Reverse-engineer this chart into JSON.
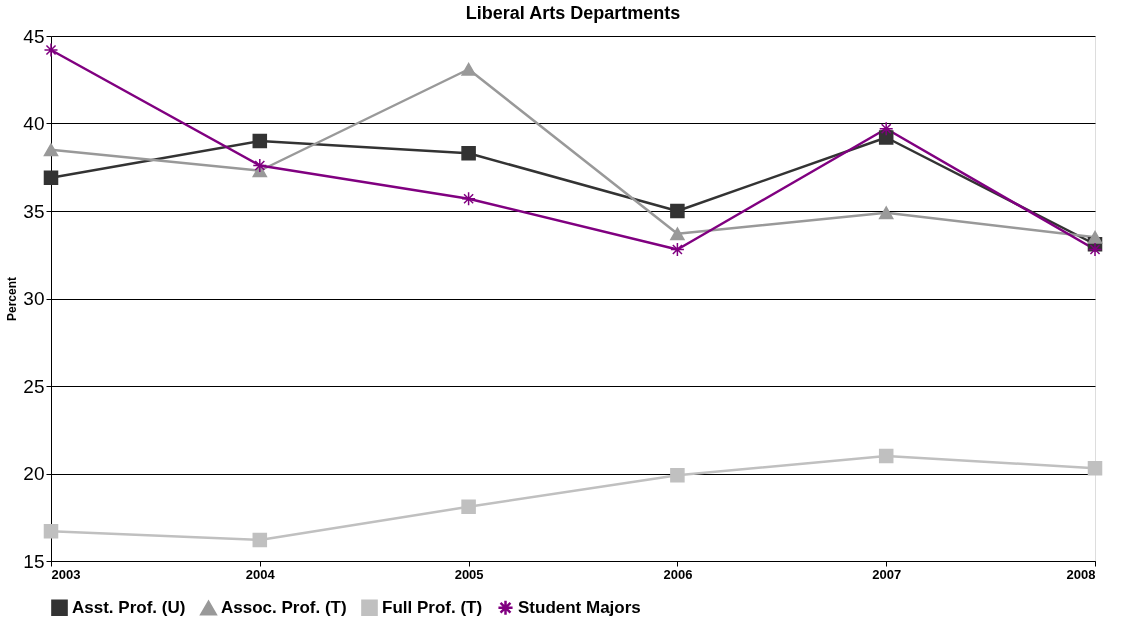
{
  "chart_data": {
    "type": "line",
    "title": "Liberal Arts Departments",
    "ylabel": "Percent",
    "categories": [
      "2003",
      "2004",
      "2005",
      "2006",
      "2007",
      "2008"
    ],
    "series": [
      {
        "name": "Asst. Prof. (U)",
        "color": "#333333",
        "marker": "square",
        "values": [
          36.9,
          39.0,
          38.3,
          35.0,
          39.2,
          33.1
        ]
      },
      {
        "name": "Assoc. Prof. (T)",
        "color": "#999999",
        "marker": "triangle",
        "values": [
          38.5,
          37.3,
          43.1,
          33.7,
          34.9,
          33.5
        ]
      },
      {
        "name": "Full Prof. (T)",
        "color": "#c0c0c0",
        "marker": "square",
        "values": [
          16.7,
          16.2,
          18.1,
          19.9,
          21.0,
          20.3
        ]
      },
      {
        "name": "Student Majors",
        "color": "#800080",
        "marker": "cross",
        "values": [
          44.2,
          37.6,
          35.7,
          32.8,
          39.7,
          32.8
        ]
      }
    ],
    "ylim": [
      15,
      45
    ],
    "yticks": [
      15,
      20,
      25,
      30,
      35,
      40,
      45
    ],
    "grid": "y",
    "legend": "bottom",
    "line_style": "solid"
  }
}
